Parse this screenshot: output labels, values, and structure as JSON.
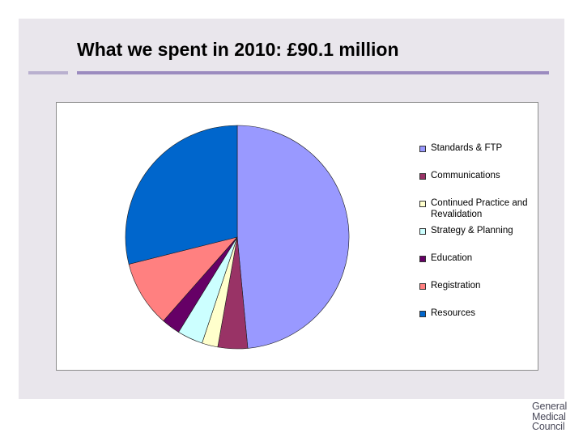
{
  "slide": {
    "title": "What we spent in 2010: £90.1 million"
  },
  "logo": {
    "line1": "General",
    "line2": "Medical",
    "line3": "Council"
  },
  "colors": {
    "panel": "#e9e6ec",
    "title_rule": "#9b8bbf"
  },
  "chart_data": {
    "type": "pie",
    "title": "",
    "legend_position": "right",
    "slices": [
      {
        "label": "Standards & FTP",
        "value": 48.5,
        "color": "#9999ff"
      },
      {
        "label": "Communications",
        "value": 4.3,
        "color": "#993366"
      },
      {
        "label": "Continued Practice and Revalidation",
        "value": 2.3,
        "color": "#ffffcc"
      },
      {
        "label": "Strategy & Planning",
        "value": 3.7,
        "color": "#ccffff"
      },
      {
        "label": "Education",
        "value": 2.7,
        "color": "#660066"
      },
      {
        "label": "Registration",
        "value": 9.6,
        "color": "#ff8080"
      },
      {
        "label": "Resources",
        "value": 28.9,
        "color": "#0066cc"
      }
    ]
  }
}
